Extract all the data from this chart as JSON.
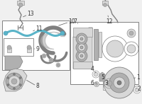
{
  "bg_color": "#f0f0f0",
  "white": "#ffffff",
  "light_gray": "#e0e0e0",
  "mid_gray": "#b0b0b0",
  "dark_gray": "#707070",
  "very_dark": "#404040",
  "highlight": "#5ab4c8",
  "highlight2": "#4a9ab8",
  "line_color": "#555555",
  "figsize": [
    2.0,
    1.47
  ],
  "dpi": 100,
  "xlim": [
    0,
    200
  ],
  "ylim": [
    0,
    147
  ]
}
